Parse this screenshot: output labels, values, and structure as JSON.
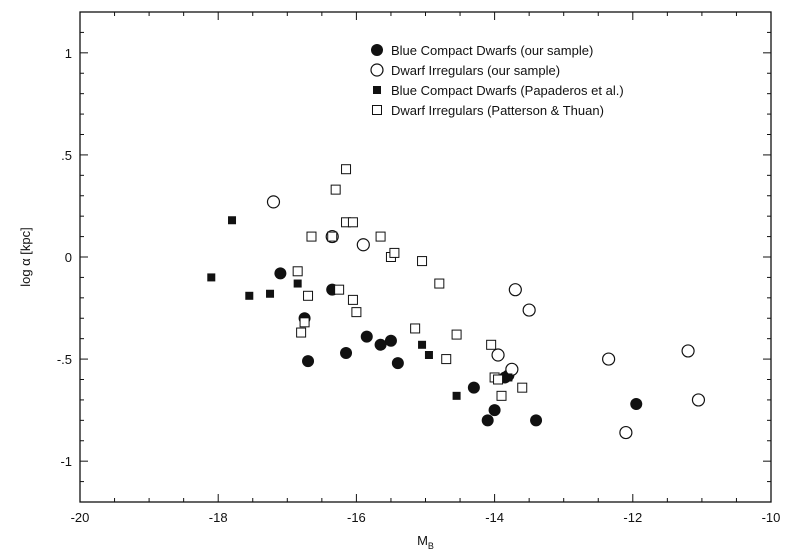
{
  "chart_data": {
    "type": "scatter",
    "xlabel": "M",
    "xlabel_sub": "B",
    "ylabel": "log α [kpc]",
    "xlim": [
      -20,
      -10
    ],
    "ylim": [
      -1.2,
      1.2
    ],
    "x_ticks": [
      -20,
      -18,
      -16,
      -14,
      -12,
      -10
    ],
    "x_tick_labels": [
      "-20",
      "-18",
      "-16",
      "-14",
      "-12",
      "-10"
    ],
    "y_ticks": [
      -1,
      -0.5,
      0,
      0.5,
      1
    ],
    "y_tick_labels": [
      "-1",
      "-.5",
      "0",
      ".5",
      "1"
    ],
    "grid": false,
    "legend_position": "top-right",
    "series": [
      {
        "name": "Blue Compact Dwarfs (our sample)",
        "marker": "filled-circle",
        "points": [
          [
            -17.1,
            -0.08
          ],
          [
            -16.75,
            -0.3
          ],
          [
            -16.7,
            -0.51
          ],
          [
            -16.35,
            -0.16
          ],
          [
            -16.15,
            -0.47
          ],
          [
            -15.85,
            -0.39
          ],
          [
            -15.65,
            -0.43
          ],
          [
            -15.5,
            -0.41
          ],
          [
            -15.4,
            -0.52
          ],
          [
            -14.3,
            -0.64
          ],
          [
            -14.1,
            -0.8
          ],
          [
            -14.0,
            -0.75
          ],
          [
            -13.85,
            -0.59
          ],
          [
            -13.8,
            -0.58
          ],
          [
            -13.4,
            -0.8
          ],
          [
            -11.95,
            -0.72
          ]
        ]
      },
      {
        "name": "Dwarf Irregulars (our sample)",
        "marker": "open-circle",
        "points": [
          [
            -17.2,
            0.27
          ],
          [
            -16.35,
            0.1
          ],
          [
            -15.9,
            0.06
          ],
          [
            -13.95,
            -0.48
          ],
          [
            -13.75,
            -0.55
          ],
          [
            -13.7,
            -0.16
          ],
          [
            -13.5,
            -0.26
          ],
          [
            -12.35,
            -0.5
          ],
          [
            -12.1,
            -0.86
          ],
          [
            -11.2,
            -0.46
          ],
          [
            -11.05,
            -0.7
          ]
        ]
      },
      {
        "name": "Blue Compact Dwarfs",
        "name_suffix": "(Papaderos et al.)",
        "marker": "filled-square",
        "points": [
          [
            -18.1,
            -0.1
          ],
          [
            -17.8,
            0.18
          ],
          [
            -17.55,
            -0.19
          ],
          [
            -17.25,
            -0.18
          ],
          [
            -16.85,
            -0.13
          ],
          [
            -15.05,
            -0.43
          ],
          [
            -14.95,
            -0.48
          ],
          [
            -14.55,
            -0.68
          ],
          [
            -13.8,
            -0.59
          ]
        ]
      },
      {
        "name": "Dwarf Irregulars (Patterson & Thuan)",
        "marker": "open-square",
        "points": [
          [
            -16.85,
            -0.07
          ],
          [
            -16.8,
            -0.37
          ],
          [
            -16.75,
            -0.32
          ],
          [
            -16.7,
            -0.19
          ],
          [
            -16.65,
            0.1
          ],
          [
            -16.35,
            0.1
          ],
          [
            -16.3,
            0.33
          ],
          [
            -16.25,
            -0.16
          ],
          [
            -16.15,
            0.43
          ],
          [
            -16.15,
            0.17
          ],
          [
            -16.05,
            0.17
          ],
          [
            -16.05,
            -0.21
          ],
          [
            -16.0,
            -0.27
          ],
          [
            -15.65,
            0.1
          ],
          [
            -15.5,
            0.0
          ],
          [
            -15.45,
            0.02
          ],
          [
            -15.15,
            -0.35
          ],
          [
            -15.05,
            -0.02
          ],
          [
            -14.8,
            -0.13
          ],
          [
            -14.7,
            -0.5
          ],
          [
            -14.55,
            -0.38
          ],
          [
            -14.05,
            -0.43
          ],
          [
            -14.0,
            -0.59
          ],
          [
            -13.95,
            -0.6
          ],
          [
            -13.9,
            -0.68
          ],
          [
            -13.6,
            -0.64
          ]
        ]
      }
    ]
  }
}
